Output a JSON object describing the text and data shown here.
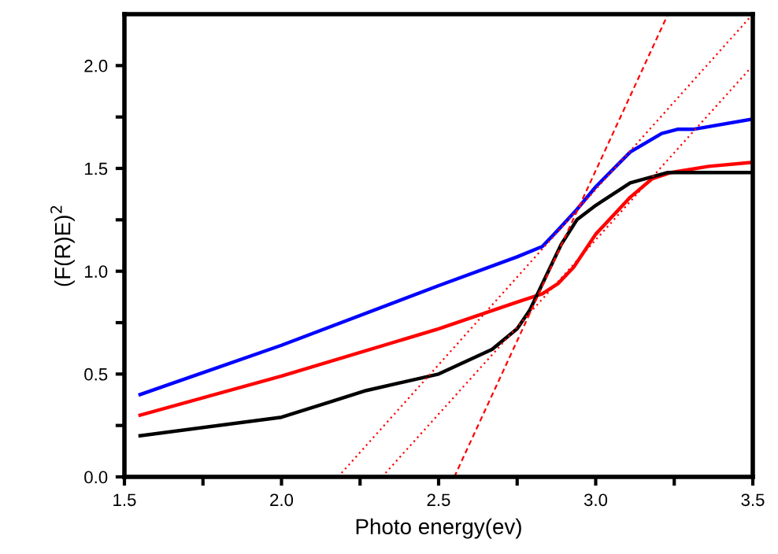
{
  "chart_data": {
    "type": "line",
    "xlabel": "Photo energy(ev)",
    "ylabel": "(F(R)E)$^{2}$",
    "xlim": [
      1.5,
      3.5
    ],
    "ylim": [
      0,
      2.25
    ],
    "xticks": [
      1.5,
      {
        "value": 1.75,
        "label": null
      },
      {
        "value": 2,
        "label": "2.0"
      },
      {
        "value": 2.25,
        "label": null
      },
      2.5,
      {
        "value": 2.75,
        "label": null
      },
      {
        "value": 3,
        "label": "3.0"
      },
      {
        "value": 3.25,
        "label": null
      },
      3.5
    ],
    "yticks": [
      {
        "value": 0,
        "label": "0.0"
      },
      {
        "value": 0.25,
        "label": null
      },
      0.5,
      {
        "value": 0.75,
        "label": null
      },
      {
        "value": 1,
        "label": "1.0"
      },
      {
        "value": 1.25,
        "label": null
      },
      1.5,
      {
        "value": 1.75,
        "label": null
      },
      {
        "value": 2,
        "label": "2.0"
      }
    ],
    "grid": false,
    "legend": false,
    "marker": "none",
    "series": [
      {
        "color": "#0000ff",
        "line_style": "solid",
        "x": [
          1.55,
          2.0,
          2.5,
          2.75,
          2.83,
          2.88,
          2.94,
          3.0,
          3.11,
          3.21,
          3.26,
          3.31,
          3.5
        ],
        "values": [
          0.4,
          0.64,
          0.93,
          1.07,
          1.12,
          1.2,
          1.3,
          1.41,
          1.58,
          1.67,
          1.69,
          1.69,
          1.74
        ]
      },
      {
        "color": "#ff0000",
        "line_style": "solid",
        "x": [
          1.55,
          2.0,
          2.5,
          2.75,
          2.83,
          2.88,
          2.93,
          3.0,
          3.11,
          3.18,
          3.24,
          3.36,
          3.5
        ],
        "values": [
          0.3,
          0.49,
          0.72,
          0.85,
          0.89,
          0.94,
          1.02,
          1.18,
          1.36,
          1.45,
          1.48,
          1.51,
          1.53
        ]
      },
      {
        "color": "#000000",
        "line_style": "solid",
        "x": [
          1.55,
          2.0,
          2.27,
          2.5,
          2.67,
          2.75,
          2.79,
          2.84,
          2.89,
          2.94,
          3.0,
          3.11,
          3.23,
          3.5
        ],
        "values": [
          0.2,
          0.29,
          0.42,
          0.5,
          0.62,
          0.72,
          0.81,
          0.97,
          1.13,
          1.25,
          1.32,
          1.43,
          1.48,
          1.48
        ]
      },
      {
        "color": "#ff0000",
        "line_style": "dotted",
        "x": [
          2.18,
          3.5
        ],
        "values": [
          0.0,
          2.25
        ]
      },
      {
        "color": "#ff0000",
        "line_style": "dotted",
        "x": [
          2.32,
          3.5
        ],
        "values": [
          0.0,
          2.0
        ]
      },
      {
        "color": "#ff0000",
        "line_style": "dashed",
        "x": [
          2.55,
          3.23
        ],
        "values": [
          0.0,
          2.25
        ]
      }
    ]
  }
}
